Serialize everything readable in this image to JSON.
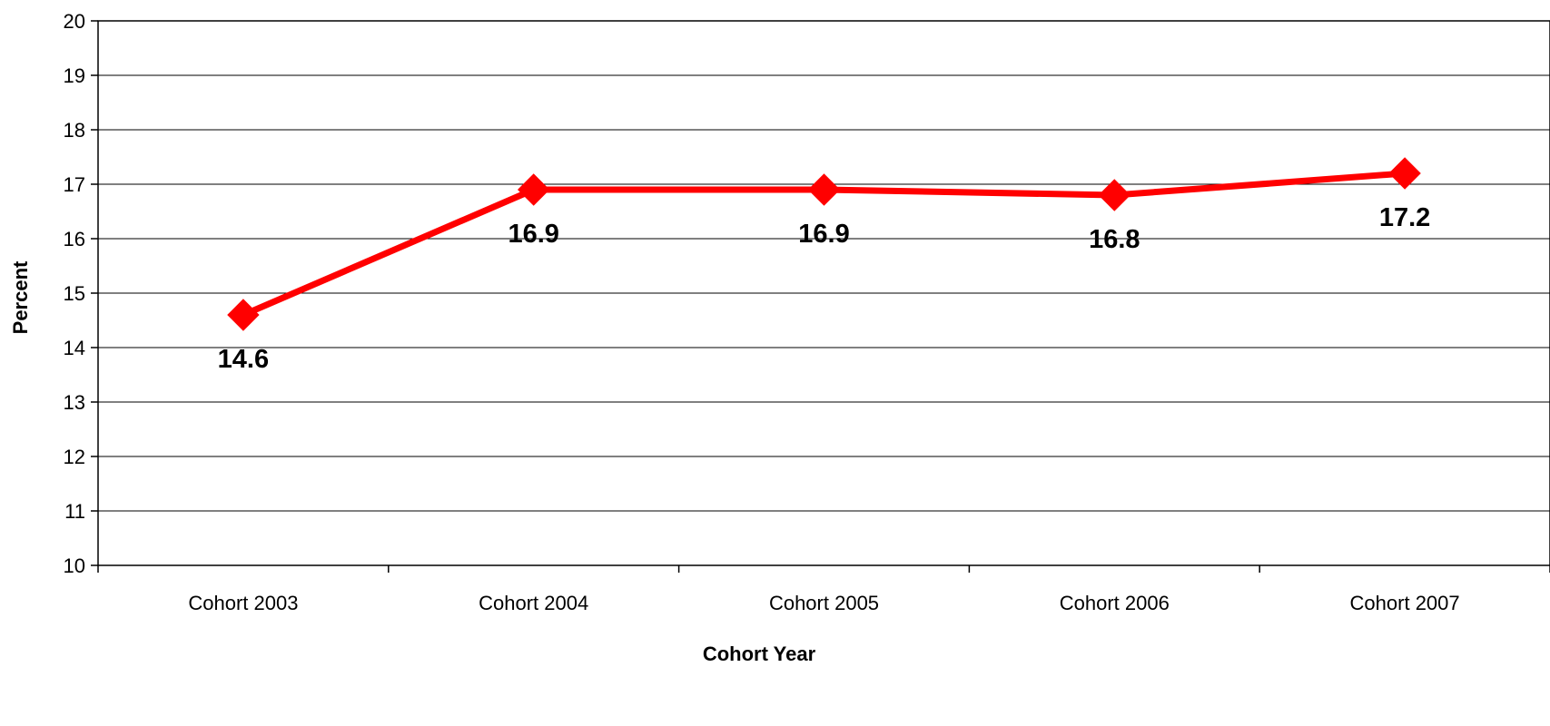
{
  "chart_data": {
    "type": "line",
    "title": "",
    "xlabel": "Cohort Year",
    "ylabel": "Percent",
    "categories": [
      "Cohort 2003",
      "Cohort 2004",
      "Cohort 2005",
      "Cohort 2006",
      "Cohort 2007"
    ],
    "series": [
      {
        "values": [
          14.6,
          16.9,
          16.9,
          16.8,
          17.2
        ],
        "color": "#ff0000",
        "marker": "diamond"
      }
    ],
    "data_labels": [
      "14.6",
      "16.9",
      "16.9",
      "16.8",
      "17.2"
    ],
    "ylim": [
      10,
      20
    ],
    "yticks": [
      10,
      11,
      12,
      13,
      14,
      15,
      16,
      17,
      18,
      19,
      20
    ],
    "grid": true,
    "legend": "none"
  }
}
